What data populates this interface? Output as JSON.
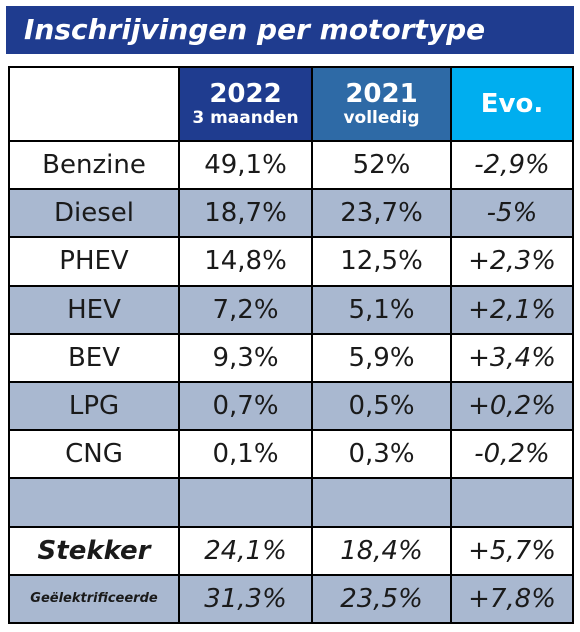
{
  "title": "Inschrijvingen per motortype",
  "columns": [
    {
      "main": "2022",
      "sub": "3 maanden"
    },
    {
      "main": "2021",
      "sub": "volledig"
    },
    {
      "main": "Evo.",
      "sub": ""
    }
  ],
  "colors": {
    "title_bar": "#1f3c8f",
    "col_2022": "#1f3c8f",
    "col_2021": "#2e6aa6",
    "col_evo": "#00aeef",
    "row_alt": "#a9b8d0"
  },
  "chart_data": {
    "type": "table",
    "title": "Inschrijvingen per motortype",
    "headers": [
      "",
      "2022 3 maanden",
      "2021 volledig",
      "Evo."
    ],
    "rows": [
      {
        "label": "Benzine",
        "v2022": "49,1%",
        "v2021": "52%",
        "evo": "-2,9%"
      },
      {
        "label": "Diesel",
        "v2022": "18,7%",
        "v2021": "23,7%",
        "evo": "-5%"
      },
      {
        "label": "PHEV",
        "v2022": "14,8%",
        "v2021": "12,5%",
        "evo": "+2,3%"
      },
      {
        "label": "HEV",
        "v2022": "7,2%",
        "v2021": "5,1%",
        "evo": "+2,1%"
      },
      {
        "label": "BEV",
        "v2022": "9,3%",
        "v2021": "5,9%",
        "evo": "+3,4%"
      },
      {
        "label": "LPG",
        "v2022": "0,7%",
        "v2021": "0,5%",
        "evo": "+0,2%"
      },
      {
        "label": "CNG",
        "v2022": "0,1%",
        "v2021": "0,3%",
        "evo": "-0,2%"
      },
      {
        "label": "",
        "v2022": "",
        "v2021": "",
        "evo": ""
      },
      {
        "label": "Stekker",
        "v2022": "24,1%",
        "v2021": "18,4%",
        "evo": "+5,7%"
      },
      {
        "label": "Geëlektrificeerde",
        "v2022": "31,3%",
        "v2021": "23,5%",
        "evo": "+7,8%"
      }
    ]
  }
}
